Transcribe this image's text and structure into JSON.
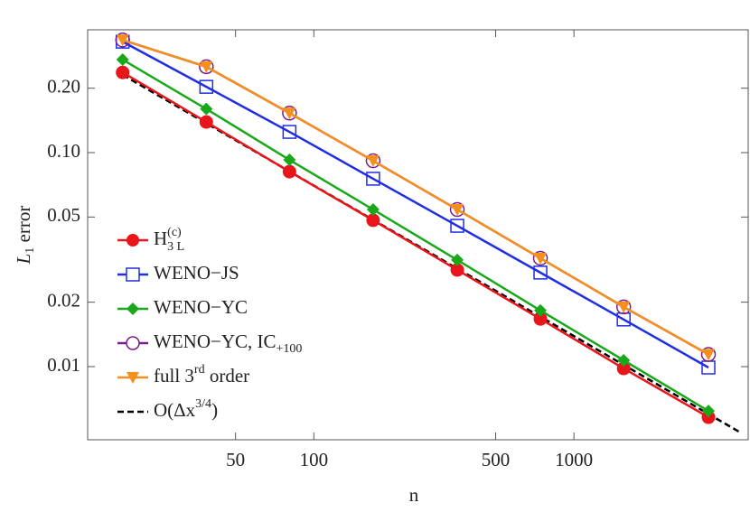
{
  "chart_data": {
    "type": "line",
    "xlabel": "n",
    "ylabel": {
      "text": "L",
      "sub": "1",
      "suffix": " error"
    },
    "x": [
      18.4,
      38.6,
      80.6,
      169,
      356,
      743,
      1553,
      3290
    ],
    "xlog": true,
    "ylog": true,
    "xlim": [
      13.5,
      4677
    ],
    "ylim": [
      0.00455,
      0.375
    ],
    "xticks": [
      50,
      100,
      500,
      1000
    ],
    "yticks": [
      0.01,
      0.02,
      0.05,
      {
        "value": 0.1,
        "label": "0.10"
      },
      {
        "value": 0.2,
        "label": "0.20"
      }
    ],
    "series": [
      {
        "name": "H",
        "sup": "(c)",
        "sub": "3 L",
        "color": "#e8151b",
        "marker": "filled-circle",
        "values": [
          0.237,
          0.139,
          0.0815,
          0.0483,
          0.0283,
          0.0167,
          0.0098,
          0.0058
        ]
      },
      {
        "name": "WENO−JS",
        "color": "#1f2ee0",
        "marker": "open-square",
        "values": [
          0.33,
          0.203,
          0.125,
          0.0755,
          0.0455,
          0.0275,
          0.0166,
          0.0099
        ]
      },
      {
        "name": "WENO−YC",
        "color": "#19a81a",
        "marker": "filled-diamond",
        "values": [
          0.272,
          0.16,
          0.0925,
          0.0542,
          0.0315,
          0.0183,
          0.0107,
          0.0062
        ]
      },
      {
        "name": "WENO−YC, IC",
        "sub": "+100",
        "color": "#7a1c8c",
        "marker": "open-circle",
        "values": [
          0.336,
          0.252,
          0.153,
          0.0916,
          0.0542,
          0.0321,
          0.019,
          0.0114
        ]
      },
      {
        "name": "full 3",
        "sup": "rd",
        "suffix": " order",
        "color": "#f5901e",
        "marker": "filled-triangle-down",
        "values": [
          0.336,
          0.252,
          0.153,
          0.0916,
          0.0542,
          0.0321,
          0.019,
          0.0114
        ]
      }
    ],
    "reference": {
      "name": "O(Δx",
      "sup": "3/4",
      "suffix": ")",
      "color": "#000000",
      "x": [
        18.4,
        4315
      ],
      "values": [
        0.231,
        0.00496
      ]
    }
  }
}
